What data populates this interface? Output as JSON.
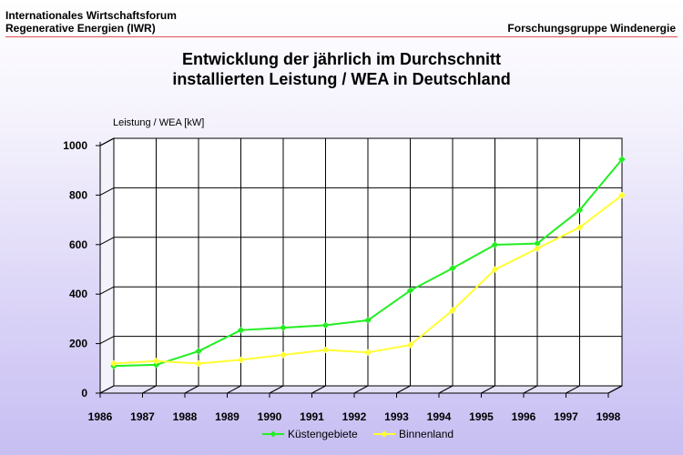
{
  "header": {
    "org_line1": "Internationales Wirtschaftsforum",
    "org_line2": "Regenerative Energien (IWR)",
    "right": "Forschungsgruppe Windenergie"
  },
  "colors": {
    "series_green": "#22ee22",
    "series_yellow": "#ffff33",
    "header_rule": "#e25050"
  },
  "chart_data": {
    "type": "line",
    "title_line1": "Entwicklung der jährlich im Durchschnitt",
    "title_line2": "installierten Leistung / WEA in Deutschland",
    "ylabel": "Leistung / WEA [kW]",
    "xlabel": "",
    "x_ticks": [
      "1986",
      "1987",
      "1988",
      "1989",
      "1990",
      "1991",
      "1992",
      "1993",
      "1994",
      "1995",
      "1996",
      "1997",
      "1998"
    ],
    "y_ticks": [
      "0",
      "200",
      "400",
      "600",
      "800",
      "1000"
    ],
    "ylim": [
      0,
      1000
    ],
    "grid": true,
    "legend_position": "bottom-center",
    "series": [
      {
        "name": "Küstengebiete",
        "color": "#22ee22",
        "x": [
          1986,
          1987,
          1988,
          1989,
          1990,
          1991,
          1992,
          1993,
          1994,
          1995,
          1996,
          1997,
          1998
        ],
        "values": [
          80,
          85,
          140,
          225,
          235,
          245,
          265,
          385,
          475,
          570,
          575,
          710,
          915
        ]
      },
      {
        "name": "Binnenland",
        "color": "#ffff33",
        "x": [
          1986,
          1987,
          1988,
          1989,
          1990,
          1991,
          1992,
          1993,
          1994,
          1995,
          1996,
          1997,
          1998
        ],
        "values": [
          90,
          100,
          90,
          105,
          125,
          145,
          135,
          165,
          305,
          470,
          555,
          640,
          770
        ]
      }
    ]
  }
}
